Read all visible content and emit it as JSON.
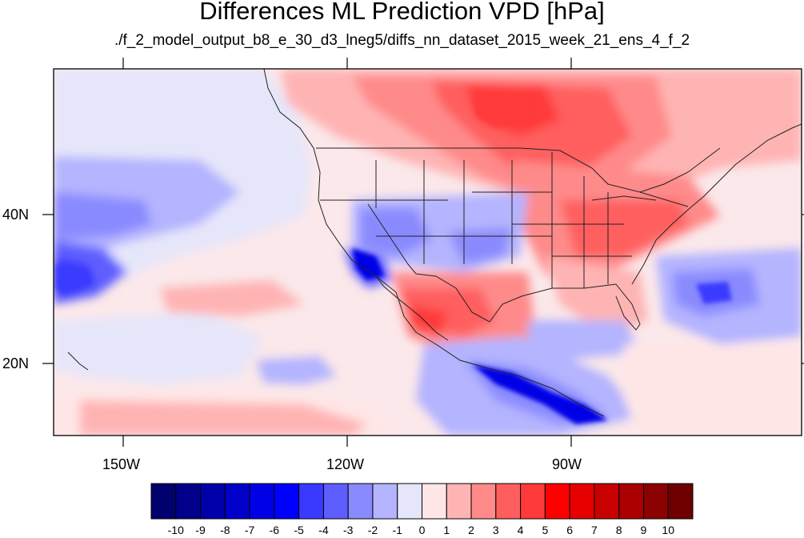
{
  "title": "Differences ML Prediction VPD [hPa]",
  "subtitle": "./f_2_model_output_b8_e_30_d3_lneg5/diffs_nn_dataset_2015_week_21_ens_4_f_2",
  "axes": {
    "lon_labels": [
      "150W",
      "120W",
      "90W"
    ],
    "lat_labels": [
      "40N",
      "20N"
    ]
  },
  "colorbar": {
    "labels": [
      "-10",
      "-9",
      "-8",
      "-7",
      "-6",
      "-5",
      "-4",
      "-3",
      "-2",
      "-1",
      "0",
      "1",
      "2",
      "3",
      "4",
      "5",
      "6",
      "7",
      "8",
      "9",
      "10"
    ],
    "colors": [
      "#00006e",
      "#00008b",
      "#0000aa",
      "#0000c8",
      "#0000e6",
      "#0000ff",
      "#3a3aff",
      "#5e5eff",
      "#8a8aff",
      "#b4b4ff",
      "#e6e6fa",
      "#ffe6e6",
      "#ffb4b4",
      "#ff8a8a",
      "#ff5e5e",
      "#ff3a3a",
      "#ff0000",
      "#e60000",
      "#c80000",
      "#aa0000",
      "#8b0000",
      "#6e0000"
    ]
  }
}
